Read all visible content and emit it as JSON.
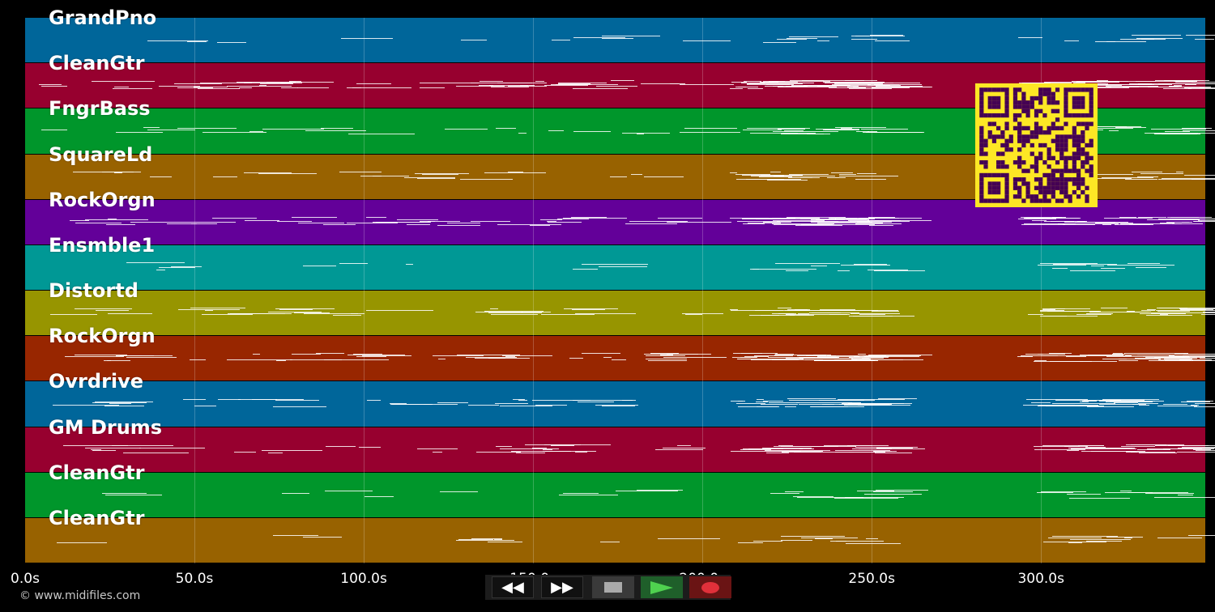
{
  "tracks": [
    {
      "name": "GrandPno",
      "color": "#00669a",
      "density": 1
    },
    {
      "name": "CleanGtr",
      "color": "#97002f",
      "density": 5
    },
    {
      "name": "FngrBass",
      "color": "#00962b",
      "density": 2
    },
    {
      "name": "SquareLd",
      "color": "#986200",
      "density": 2
    },
    {
      "name": "RockOrgn",
      "color": "#630099",
      "density": 4
    },
    {
      "name": "Ensmble1",
      "color": "#009895",
      "density": 1
    },
    {
      "name": "Distortd",
      "color": "#979500",
      "density": 3
    },
    {
      "name": "RockOrgn",
      "color": "#982600",
      "density": 4
    },
    {
      "name": "Ovrdrive",
      "color": "#00669a",
      "density": 3
    },
    {
      "name": "GM Drums",
      "color": "#97002f",
      "density": 3
    },
    {
      "name": "CleanGtr",
      "color": "#00962b",
      "density": 1
    },
    {
      "name": "CleanGtr",
      "color": "#986200",
      "density": 1
    }
  ],
  "time_axis": {
    "ticks": [
      {
        "seconds": 0,
        "label": "0.0s"
      },
      {
        "seconds": 50,
        "label": "50.0s"
      },
      {
        "seconds": 100,
        "label": "100.0s"
      },
      {
        "seconds": 150,
        "label": "150.0s"
      },
      {
        "seconds": 200,
        "label": "200.0s"
      },
      {
        "seconds": 250,
        "label": "250.0s"
      },
      {
        "seconds": 300,
        "label": "300.0s"
      }
    ],
    "max_seconds": 348.5
  },
  "transport": {
    "rewind_icon": "rewind-icon",
    "ffwd_icon": "fast-forward-icon",
    "stop_icon": "stop-icon",
    "play_icon": "play-icon",
    "record_icon": "record-icon",
    "rewind_glyph": "◀◀",
    "ffwd_glyph": "▶▶"
  },
  "qr_code": {
    "fg": "#440154",
    "bg": "#fde725"
  },
  "copyright": "© www.midifiles.com"
}
